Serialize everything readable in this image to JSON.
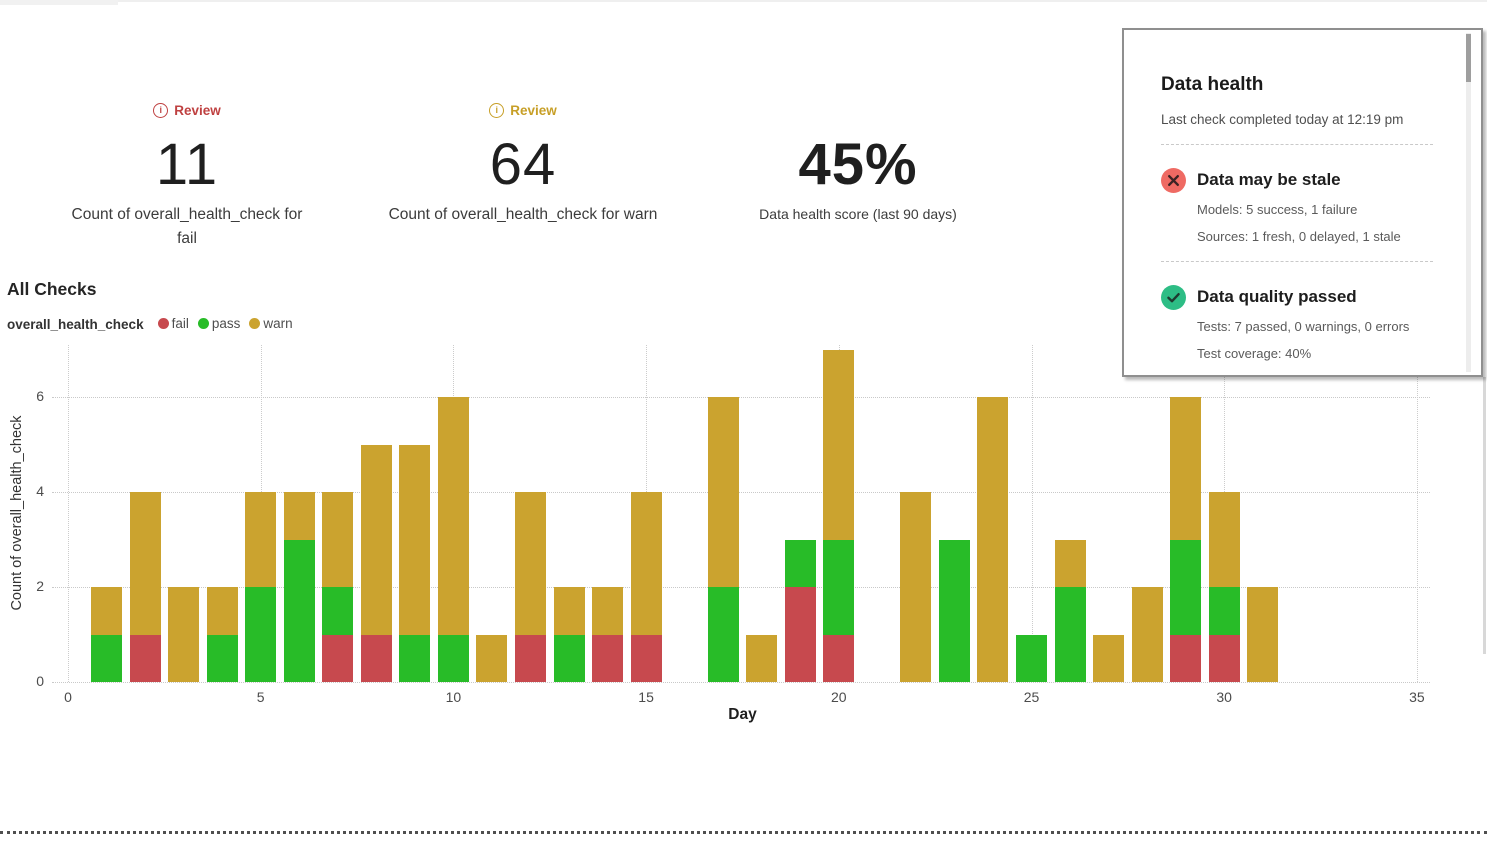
{
  "metrics": [
    {
      "badge": "Review",
      "value": "11",
      "label": "Count of overall_health_check for fail"
    },
    {
      "badge": "Review",
      "value": "64",
      "label": "Count of overall_health_check for warn"
    },
    {
      "value": "45%",
      "label": "Data health score (last 90 days)"
    }
  ],
  "chart": {
    "title": "All Checks",
    "legend_title": "overall_health_check"
  },
  "chart_data": {
    "type": "bar",
    "stacked": true,
    "title": "All Checks",
    "xlabel": "Day",
    "ylabel": "Count of overall_health_check",
    "x": [
      1,
      2,
      3,
      4,
      5,
      6,
      7,
      8,
      9,
      10,
      11,
      12,
      13,
      14,
      15,
      16,
      17,
      18,
      19,
      20,
      21,
      22,
      23,
      24,
      25,
      26,
      27,
      28,
      29,
      30,
      31
    ],
    "series": [
      {
        "name": "fail",
        "color": "#c7494e",
        "values": [
          0,
          1,
          0,
          0,
          0,
          0,
          1,
          1,
          0,
          0,
          0,
          1,
          0,
          1,
          1,
          0,
          0,
          0,
          2,
          1,
          0,
          0,
          0,
          0,
          0,
          0,
          0,
          0,
          1,
          1,
          0
        ]
      },
      {
        "name": "pass",
        "color": "#28bc28",
        "values": [
          1,
          0,
          0,
          1,
          2,
          3,
          1,
          0,
          1,
          1,
          0,
          0,
          1,
          0,
          0,
          0,
          2,
          0,
          1,
          2,
          0,
          0,
          3,
          0,
          1,
          2,
          0,
          0,
          2,
          1,
          0
        ]
      },
      {
        "name": "warn",
        "color": "#cba32f",
        "values": [
          1,
          3,
          2,
          1,
          2,
          1,
          2,
          4,
          4,
          5,
          1,
          3,
          1,
          1,
          3,
          0,
          4,
          1,
          0,
          4,
          0,
          4,
          0,
          6,
          0,
          1,
          1,
          2,
          3,
          2,
          2
        ]
      }
    ],
    "xticks": [
      0,
      5,
      10,
      15,
      20,
      25,
      30,
      35
    ],
    "yticks": [
      0,
      2,
      4,
      6
    ],
    "xlim": [
      0,
      35
    ],
    "ylim": [
      0,
      7.1
    ],
    "grid": "dotted",
    "legend_position": "top"
  },
  "panel": {
    "title": "Data health",
    "subtitle": "Last check completed today at 12:19 pm",
    "sections": [
      {
        "icon": "x-circle",
        "icon_color": "#ef6a63",
        "title": "Data may be stale",
        "lines": [
          "Models: 5 success, 1 failure",
          "Sources: 1 fresh, 0 delayed, 1 stale"
        ]
      },
      {
        "icon": "check-circle",
        "icon_color": "#2dbd85",
        "title": "Data quality passed",
        "lines": [
          "Tests: 7 passed, 0 warnings, 0 errors",
          "Test coverage: 40%"
        ]
      }
    ]
  }
}
